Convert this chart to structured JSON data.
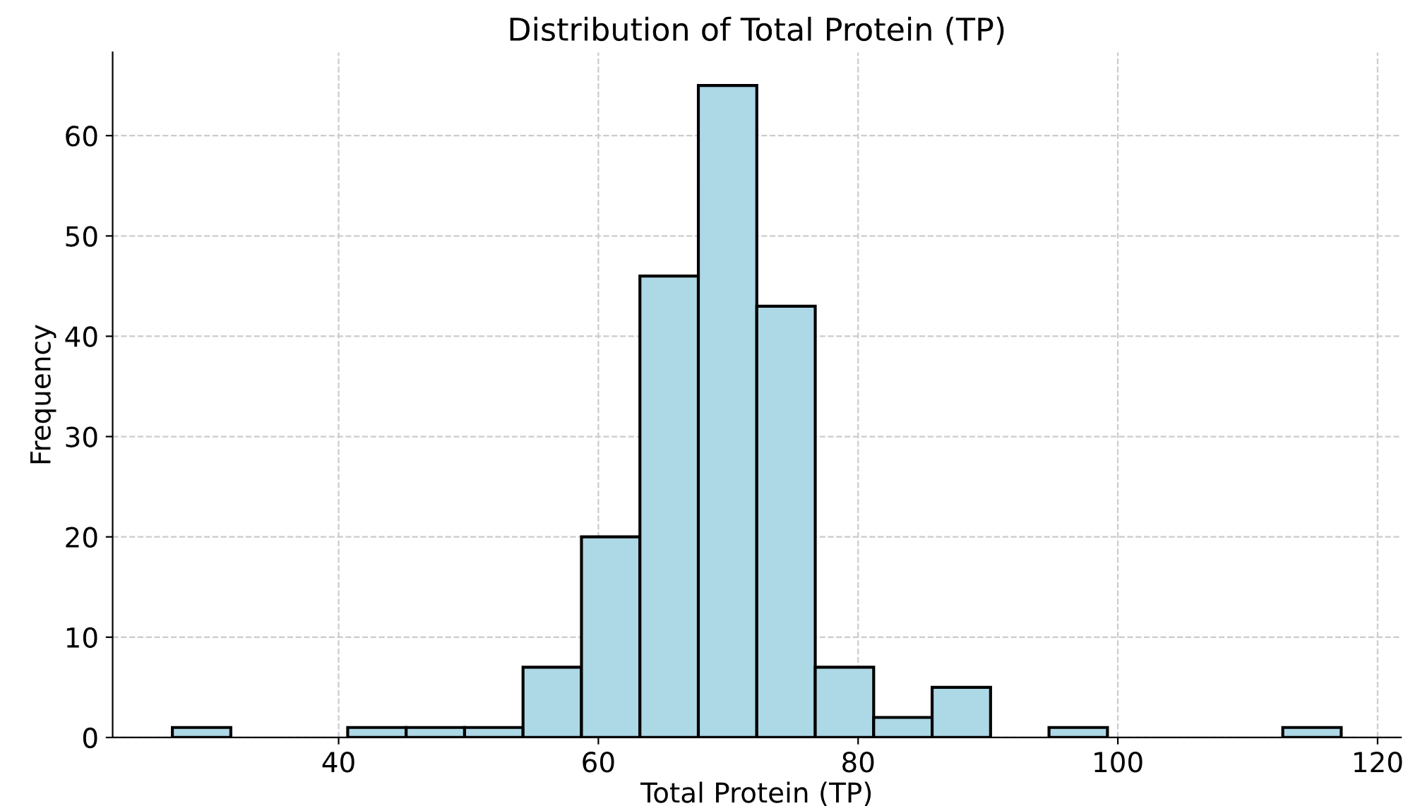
{
  "chart_data": {
    "type": "histogram",
    "title": "Distribution of Total Protein (TP)",
    "xlabel": "Total Protein (TP)",
    "ylabel": "Frequency",
    "bins": [
      27.2,
      31.7,
      36.2,
      40.7,
      45.2,
      49.7,
      54.2,
      58.7,
      63.2,
      67.7,
      72.2,
      76.7,
      81.2,
      85.7,
      90.2,
      94.7,
      99.2,
      103.7,
      108.2,
      112.7,
      117.2
    ],
    "values": [
      1,
      0,
      0,
      1,
      1,
      1,
      7,
      20,
      46,
      65,
      43,
      7,
      2,
      5,
      0,
      1,
      0,
      0,
      0,
      1
    ],
    "color": "#add8e6",
    "xlim": [
      22.6,
      121.8
    ],
    "ylim": [
      0,
      68.3
    ],
    "xticks": [
      40,
      60,
      80,
      100,
      120
    ],
    "yticks": [
      0,
      10,
      20,
      30,
      40,
      50,
      60
    ],
    "grid": true,
    "line_style": "dashed"
  }
}
